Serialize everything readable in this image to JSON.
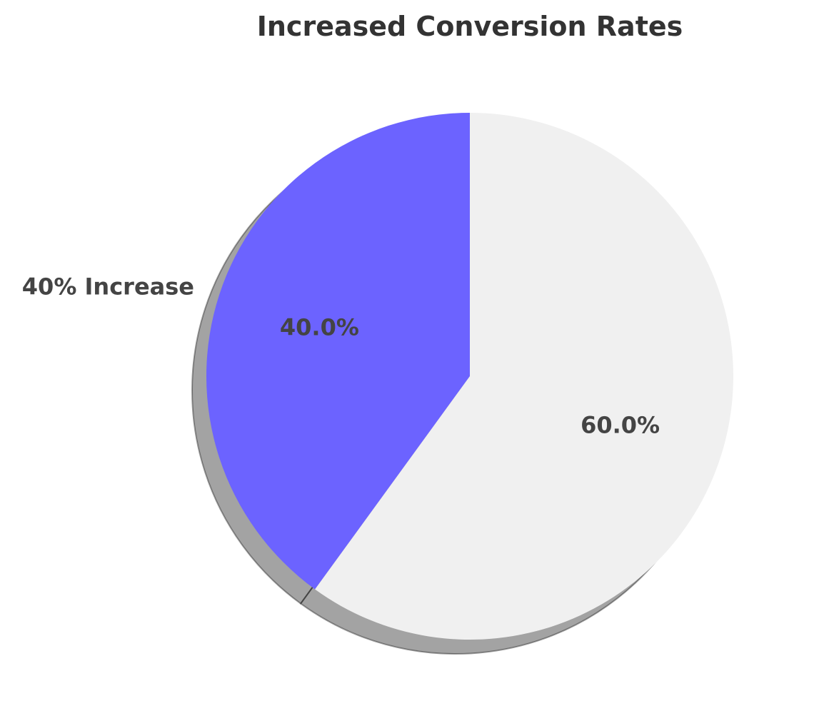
{
  "chart_data": {
    "type": "pie",
    "title": "Increased Conversion Rates",
    "start_angle_deg": 90,
    "direction": "counterclockwise",
    "shadow": true,
    "slices": [
      {
        "label": "40% Increase",
        "value": 40,
        "pct_label": "40.0%",
        "color": "#6c63ff"
      },
      {
        "label": "",
        "value": 60,
        "pct_label": "60.0%",
        "color": "#f0f0f0"
      }
    ]
  }
}
